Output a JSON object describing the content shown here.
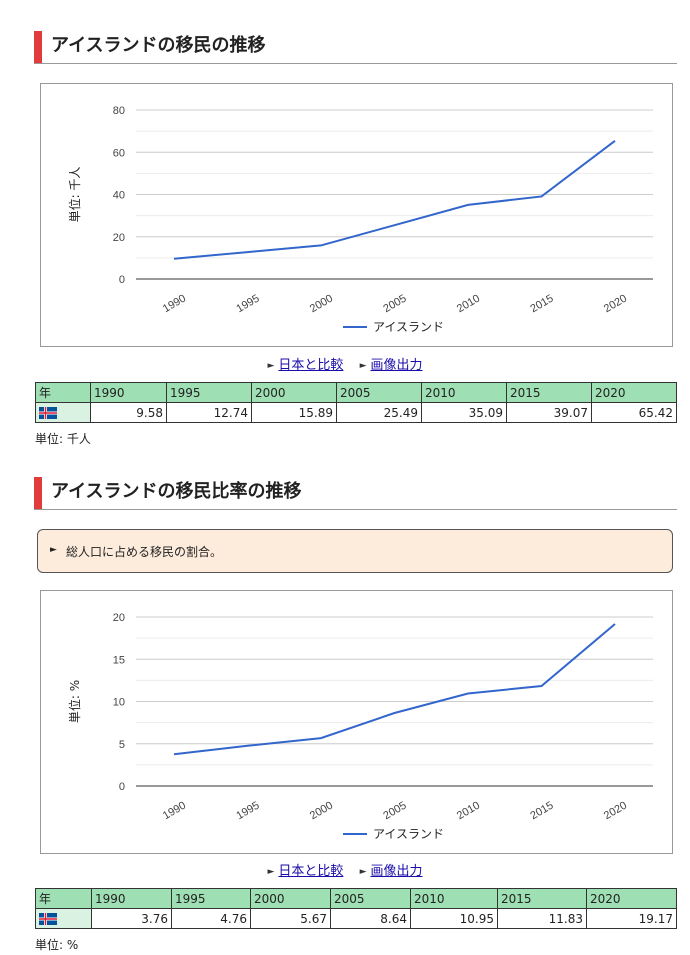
{
  "sections": [
    {
      "title": "アイスランドの移民の推移",
      "unit_label": "単位: 千人",
      "links": {
        "compare": "日本と比較",
        "image": "画像出力"
      },
      "table": {
        "header_label": "年",
        "years": [
          "1990",
          "1995",
          "2000",
          "2005",
          "2010",
          "2015",
          "2020"
        ],
        "values": [
          "9.58",
          "12.74",
          "15.89",
          "25.49",
          "35.09",
          "39.07",
          "65.42"
        ]
      }
    },
    {
      "title": "アイスランドの移民比率の推移",
      "note": "総人口に占める移民の割合。",
      "unit_label": "単位: %",
      "links": {
        "compare": "日本と比較",
        "image": "画像出力"
      },
      "table": {
        "header_label": "年",
        "years": [
          "1990",
          "1995",
          "2000",
          "2005",
          "2010",
          "2015",
          "2020"
        ],
        "values": [
          "3.76",
          "4.76",
          "5.67",
          "8.64",
          "10.95",
          "11.83",
          "19.17"
        ]
      }
    }
  ],
  "colors": {
    "line": "#3366cc",
    "accent_bar": "#e23b3b",
    "table_header": "#9fdfb4",
    "note_bg": "#fdecdc"
  },
  "chart_data": [
    {
      "type": "line",
      "x": [
        1990,
        1995,
        2000,
        2005,
        2010,
        2015,
        2020
      ],
      "series": [
        {
          "name": "アイスランド",
          "values": [
            9.58,
            12.74,
            15.89,
            25.49,
            35.09,
            39.07,
            65.42
          ]
        }
      ],
      "ylabel": "単位: 千人",
      "ylim": [
        0,
        80
      ],
      "yticks": [
        0,
        20,
        40,
        60,
        80
      ],
      "grid": true,
      "legend": "bottom"
    },
    {
      "type": "line",
      "x": [
        1990,
        1995,
        2000,
        2005,
        2010,
        2015,
        2020
      ],
      "series": [
        {
          "name": "アイスランド",
          "values": [
            3.76,
            4.76,
            5.67,
            8.64,
            10.95,
            11.83,
            19.17
          ]
        }
      ],
      "ylabel": "単位: %",
      "ylim": [
        0,
        20
      ],
      "yticks": [
        0,
        5,
        10,
        15,
        20
      ],
      "grid": true,
      "legend": "bottom"
    }
  ]
}
